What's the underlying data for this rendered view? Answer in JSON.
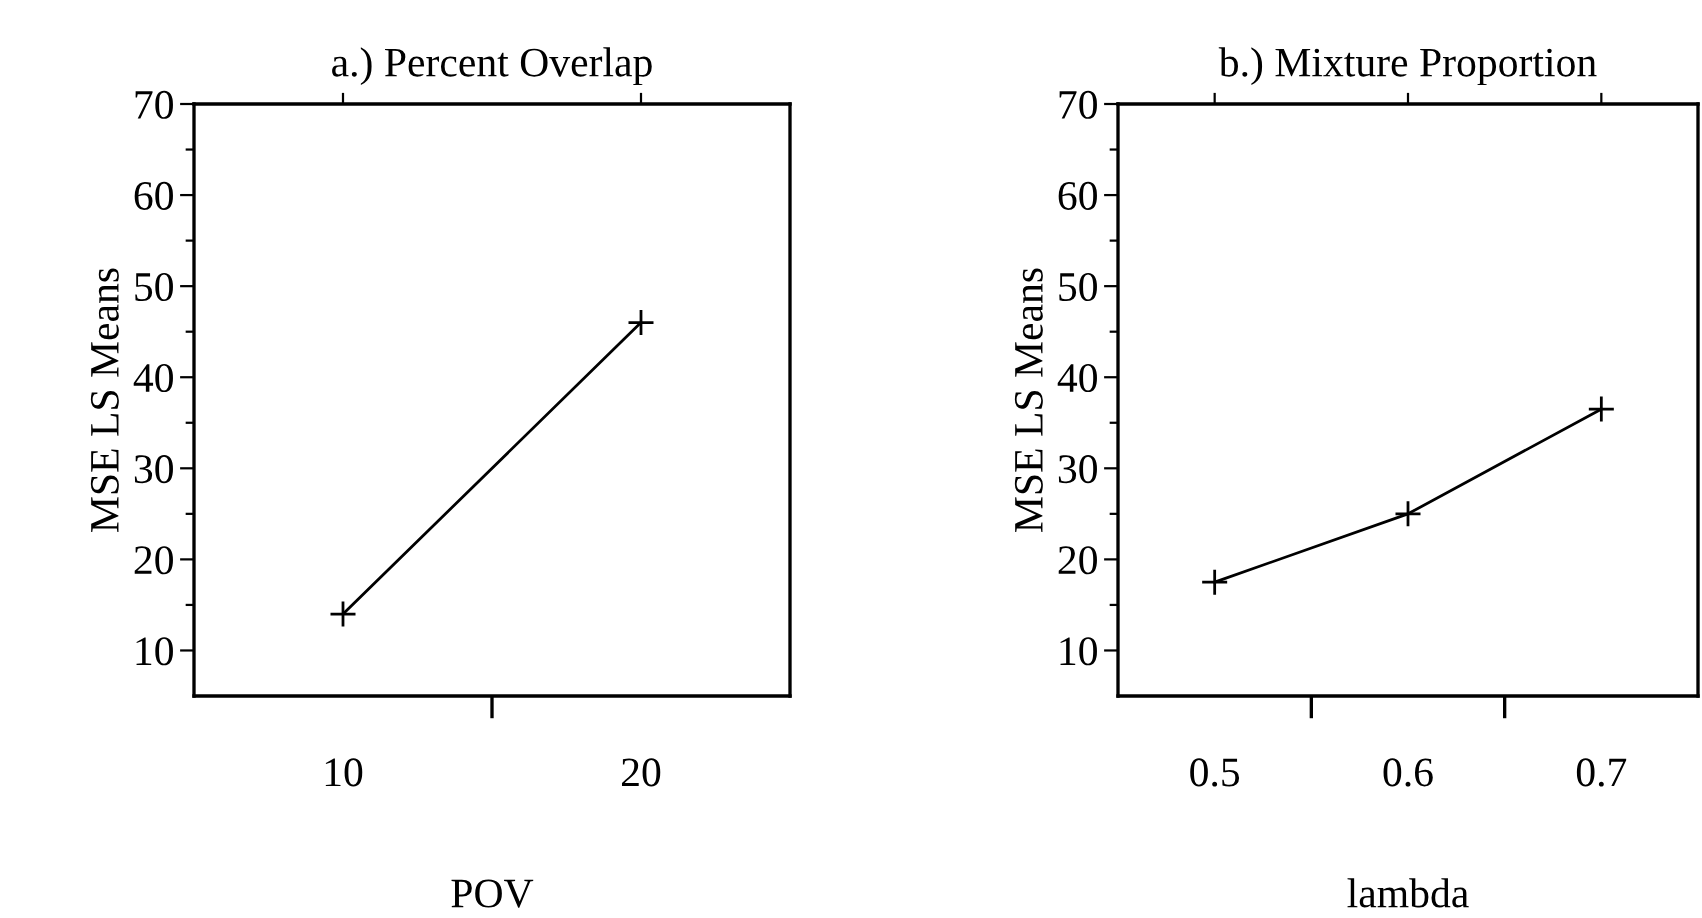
{
  "chart_data": [
    {
      "type": "line",
      "title": "a.) Percent Overlap",
      "xlabel": "POV",
      "ylabel": "MSE LS Means",
      "categories": [
        "10",
        "20"
      ],
      "series": [
        {
          "color": "#000000",
          "values": [
            14,
            46
          ]
        }
      ],
      "marker": "cross",
      "ylim": [
        5,
        70
      ],
      "yticks": [
        {
          "value": 10,
          "label": "10"
        },
        {
          "value": 15,
          "label": null
        },
        {
          "value": 20,
          "label": "20"
        },
        {
          "value": 25,
          "label": null
        },
        {
          "value": 30,
          "label": "30"
        },
        {
          "value": 35,
          "label": null
        },
        {
          "value": 40,
          "label": "40"
        },
        {
          "value": 45,
          "label": null
        },
        {
          "value": 50,
          "label": "50"
        },
        {
          "value": 55,
          "label": null
        },
        {
          "value": 60,
          "label": "60"
        },
        {
          "value": 65,
          "label": null
        },
        {
          "value": 70,
          "label": "70"
        }
      ],
      "grid": false,
      "legend": false
    },
    {
      "type": "line",
      "title": "b.) Mixture Proportion",
      "xlabel": "lambda",
      "ylabel": "MSE LS Means",
      "categories": [
        "0.5",
        "0.6",
        "0.7"
      ],
      "series": [
        {
          "color": "#000000",
          "values": [
            17.5,
            25,
            36.5
          ]
        }
      ],
      "marker": "cross",
      "ylim": [
        5,
        70
      ],
      "yticks": [
        {
          "value": 10,
          "label": "10"
        },
        {
          "value": 15,
          "label": null
        },
        {
          "value": 20,
          "label": "20"
        },
        {
          "value": 25,
          "label": null
        },
        {
          "value": 30,
          "label": "30"
        },
        {
          "value": 35,
          "label": null
        },
        {
          "value": 40,
          "label": "40"
        },
        {
          "value": 45,
          "label": null
        },
        {
          "value": 50,
          "label": "50"
        },
        {
          "value": 55,
          "label": null
        },
        {
          "value": 60,
          "label": "60"
        },
        {
          "value": 65,
          "label": null
        },
        {
          "value": 70,
          "label": "70"
        }
      ],
      "grid": false,
      "legend": false
    }
  ]
}
